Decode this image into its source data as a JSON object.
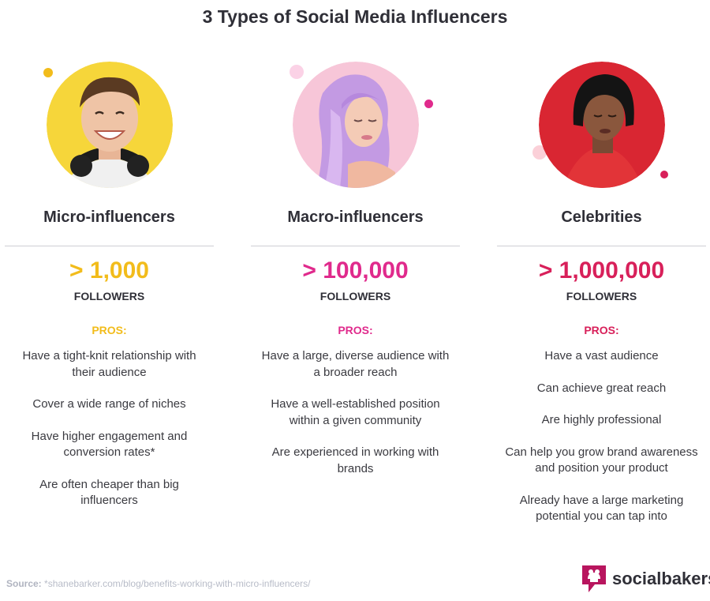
{
  "title": "3 Types of Social Media Influencers",
  "colors": {
    "yellow": "#f2bc1b",
    "magenta": "#e02a8c",
    "red": "#d8205a",
    "dark": "#2f2f37"
  },
  "columns": [
    {
      "heading": "Micro-influencers",
      "count": "> 1,000",
      "followers": "FOLLOWERS",
      "pros_label": "PROS:",
      "pros": [
        "Have a tight-knit relationship with their audience",
        "Cover a wide range of niches",
        "Have higher engagement and conversion rates*",
        "Are often cheaper than big influencers"
      ]
    },
    {
      "heading": "Macro-influencers",
      "count": "> 100,000",
      "followers": "FOLLOWERS",
      "pros_label": "PROS:",
      "pros": [
        "Have a large, diverse audience with a broader reach",
        "Have a well-established position within a given community",
        "Are experienced in working with brands"
      ]
    },
    {
      "heading": "Celebrities",
      "count": "> 1,000,000",
      "followers": "FOLLOWERS",
      "pros_label": "PROS:",
      "pros": [
        "Have a vast audience",
        "Can achieve great reach",
        "Are highly professional",
        "Can help you grow brand awareness and position your product",
        "Already have a large marketing potential you can tap into"
      ]
    }
  ],
  "source": {
    "label": "Source:",
    "url": "*shanebarker.com/blog/benefits-working-with-micro-influencers/"
  },
  "brand": {
    "name": "socialbakers",
    "icon": "socialbakers-logo-icon"
  }
}
